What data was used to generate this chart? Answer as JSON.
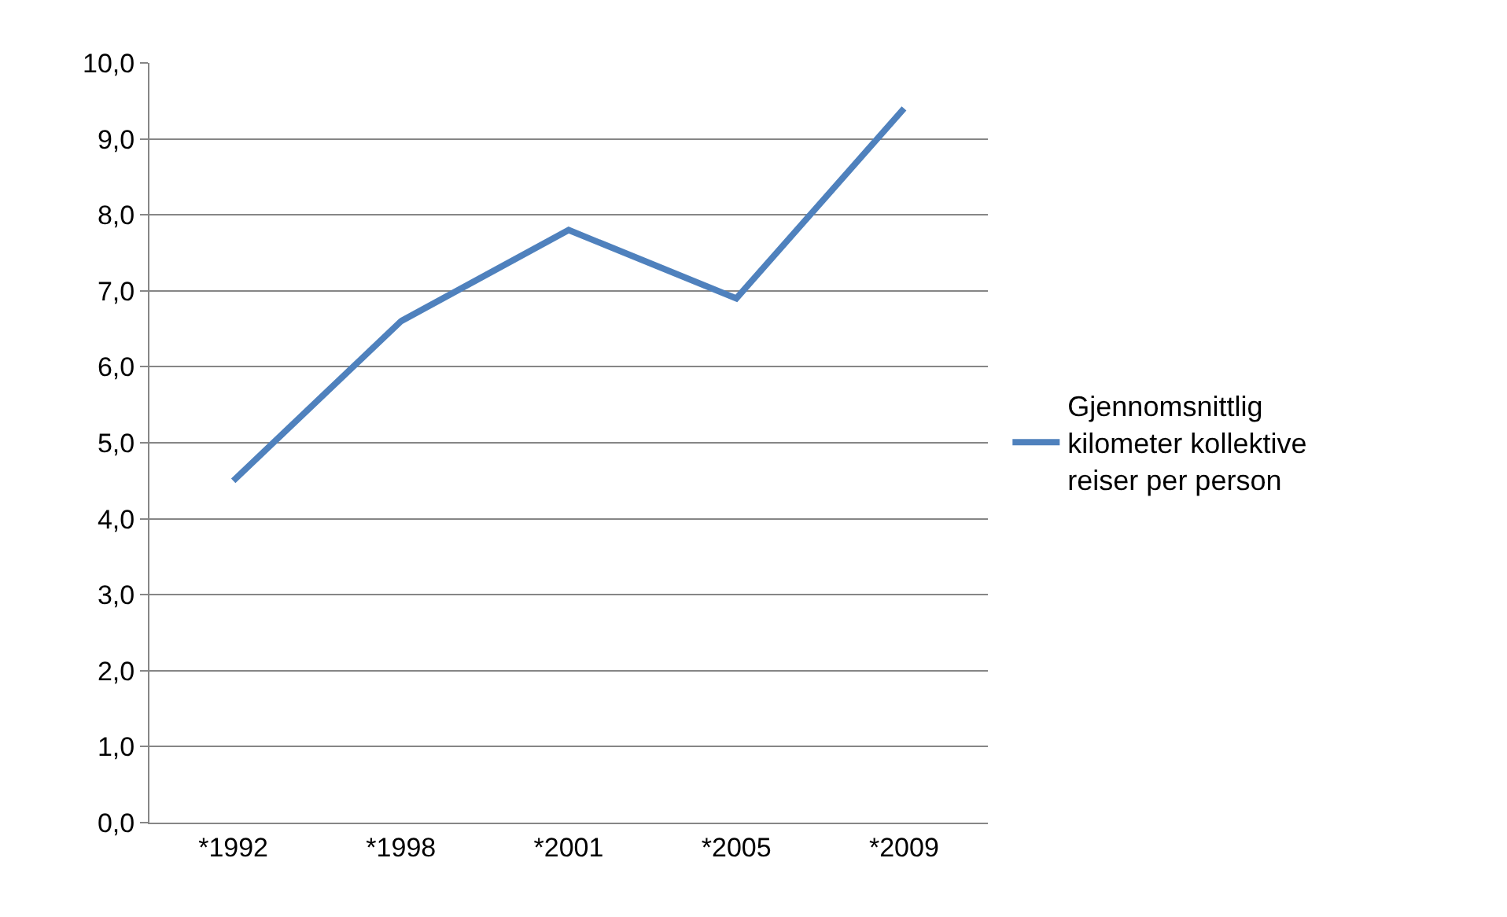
{
  "chart_data": {
    "type": "line",
    "categories": [
      "*1992",
      "*1998",
      "*2001",
      "*2005",
      "*2009"
    ],
    "series": [
      {
        "name": "Gjennomsnittlig kilometer kollektive reiser per person",
        "color": "#4f81bd",
        "values": [
          4.5,
          6.6,
          7.8,
          6.9,
          9.4
        ]
      }
    ],
    "ylim": [
      0,
      10
    ],
    "yticks": [
      {
        "value": 0,
        "label": "0,0"
      },
      {
        "value": 1,
        "label": "1,0"
      },
      {
        "value": 2,
        "label": "2,0"
      },
      {
        "value": 3,
        "label": "3,0"
      },
      {
        "value": 4,
        "label": "4,0"
      },
      {
        "value": 5,
        "label": "5,0"
      },
      {
        "value": 6,
        "label": "6,0"
      },
      {
        "value": 7,
        "label": "7,0"
      },
      {
        "value": 8,
        "label": "8,0"
      },
      {
        "value": 9,
        "label": "9,0"
      },
      {
        "value": 10,
        "label": "10,0"
      }
    ],
    "grid": "y",
    "legend": "right",
    "marker": "none",
    "line_style": "solid"
  }
}
